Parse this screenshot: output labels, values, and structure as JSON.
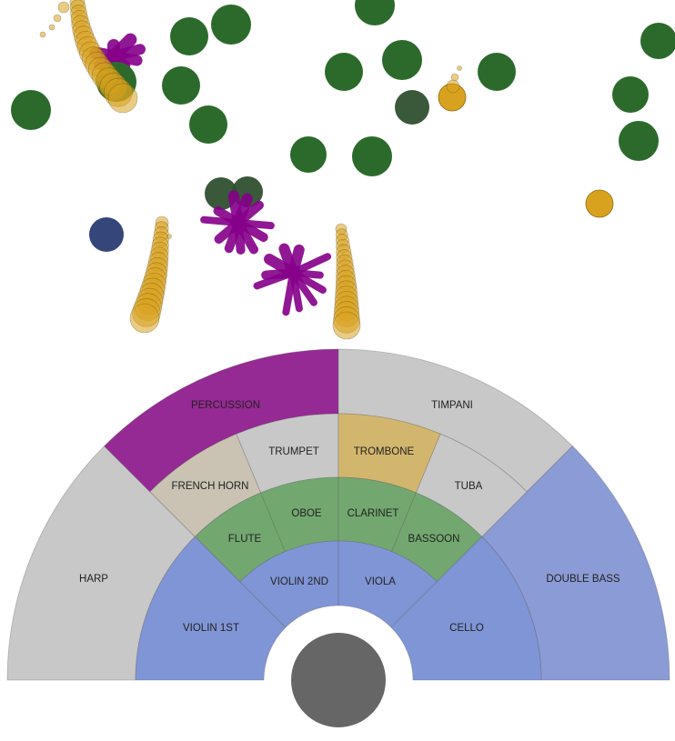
{
  "sections": [
    {
      "id": "harp",
      "label": "HARP",
      "color": "#c8c8c8"
    },
    {
      "id": "percussion",
      "label": "PERCUSSION",
      "color": "#962a94"
    },
    {
      "id": "timpani",
      "label": "TIMPANI",
      "color": "#c8c8c8"
    },
    {
      "id": "double-bass",
      "label": "DOUBLE BASS",
      "color": "#8a9bd5"
    },
    {
      "id": "french-horn",
      "label": "FRENCH HORN",
      "color": "#cac3b3"
    },
    {
      "id": "trumpet",
      "label": "TRUMPET",
      "color": "#c8c8c8"
    },
    {
      "id": "trombone",
      "label": "TROMBONE",
      "color": "#d3b66e"
    },
    {
      "id": "tuba",
      "label": "TUBA",
      "color": "#c8c8c8"
    },
    {
      "id": "flute",
      "label": "FLUTE",
      "color": "#72a870"
    },
    {
      "id": "oboe",
      "label": "OBOE",
      "color": "#72a870"
    },
    {
      "id": "clarinet",
      "label": "CLARINET",
      "color": "#72a870"
    },
    {
      "id": "bassoon",
      "label": "BASSOON",
      "color": "#72a870"
    },
    {
      "id": "violin-1st",
      "label": "VIOLIN 1ST",
      "color": "#8095d6"
    },
    {
      "id": "violin-2nd",
      "label": "VIOLIN 2ND",
      "color": "#8095d6"
    },
    {
      "id": "viola",
      "label": "VIOLA",
      "color": "#8095d6"
    },
    {
      "id": "cello",
      "label": "CELLO",
      "color": "#8095d6"
    }
  ],
  "conductor_color": "#666666",
  "particle_colors": {
    "green": "#2c6a2c",
    "dark_green": "#2f4f2f",
    "gold": "#d9a21e",
    "purple": "#86008a",
    "navy": "#34467a"
  }
}
